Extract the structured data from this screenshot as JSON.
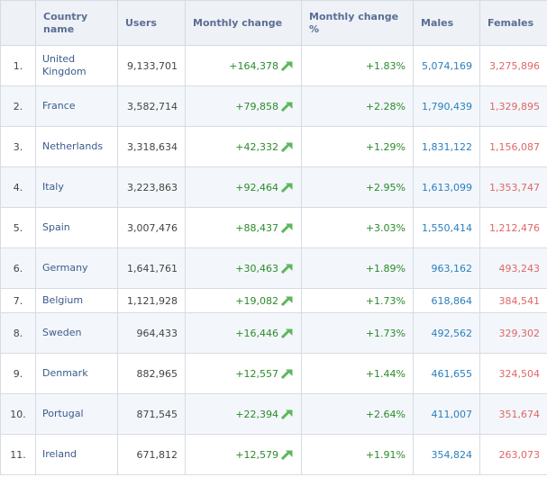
{
  "columns": {
    "rank": "",
    "country": "Country name",
    "users": "Users",
    "monthly_change": "Monthly change",
    "monthly_change_pct": "Monthly change %",
    "males": "Males",
    "females": "Females"
  },
  "colors": {
    "header_bg": "#eef1f6",
    "header_text": "#5a6e94",
    "positive_green": "#2c8a2c",
    "males_blue": "#2a7fbd",
    "females_red": "#e06666",
    "arrow_green": "#5cb85c"
  },
  "rows": [
    {
      "rank": "1.",
      "country": "United Kingdom",
      "users": "9,133,701",
      "change": "+164,378",
      "pct": "+1.83%",
      "males": "5,074,169",
      "females": "3,275,896",
      "trend_icon": "arrow-up-right-icon"
    },
    {
      "rank": "2.",
      "country": "France",
      "users": "3,582,714",
      "change": "+79,858",
      "pct": "+2.28%",
      "males": "1,790,439",
      "females": "1,329,895",
      "trend_icon": "arrow-up-right-icon"
    },
    {
      "rank": "3.",
      "country": "Netherlands",
      "users": "3,318,634",
      "change": "+42,332",
      "pct": "+1.29%",
      "males": "1,831,122",
      "females": "1,156,087",
      "trend_icon": "arrow-up-right-icon"
    },
    {
      "rank": "4.",
      "country": "Italy",
      "users": "3,223,863",
      "change": "+92,464",
      "pct": "+2.95%",
      "males": "1,613,099",
      "females": "1,353,747",
      "trend_icon": "arrow-up-right-icon"
    },
    {
      "rank": "5.",
      "country": "Spain",
      "users": "3,007,476",
      "change": "+88,437",
      "pct": "+3.03%",
      "males": "1,550,414",
      "females": "1,212,476",
      "trend_icon": "arrow-up-right-icon"
    },
    {
      "rank": "6.",
      "country": "Germany",
      "users": "1,641,761",
      "change": "+30,463",
      "pct": "+1.89%",
      "males": "963,162",
      "females": "493,243",
      "trend_icon": "arrow-up-right-icon"
    },
    {
      "rank": "7.",
      "country": "Belgium",
      "users": "1,121,928",
      "change": "+19,082",
      "pct": "+1.73%",
      "males": "618,864",
      "females": "384,541",
      "trend_icon": "arrow-up-right-icon"
    },
    {
      "rank": "8.",
      "country": "Sweden",
      "users": "964,433",
      "change": "+16,446",
      "pct": "+1.73%",
      "males": "492,562",
      "females": "329,302",
      "trend_icon": "arrow-up-right-icon"
    },
    {
      "rank": "9.",
      "country": "Denmark",
      "users": "882,965",
      "change": "+12,557",
      "pct": "+1.44%",
      "males": "461,655",
      "females": "324,504",
      "trend_icon": "arrow-up-right-icon"
    },
    {
      "rank": "10.",
      "country": "Portugal",
      "users": "871,545",
      "change": "+22,394",
      "pct": "+2.64%",
      "males": "411,007",
      "females": "351,674",
      "trend_icon": "arrow-up-right-icon"
    },
    {
      "rank": "11.",
      "country": "Ireland",
      "users": "671,812",
      "change": "+12,579",
      "pct": "+1.91%",
      "males": "354,824",
      "females": "263,073",
      "trend_icon": "arrow-up-right-icon"
    }
  ]
}
